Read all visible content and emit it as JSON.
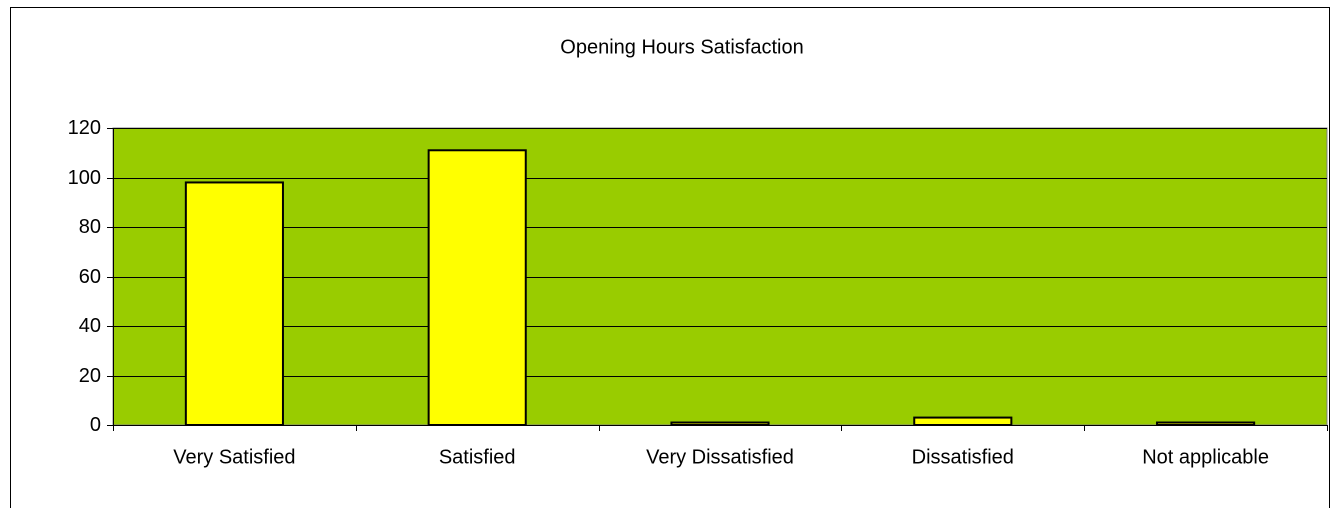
{
  "chart_data": {
    "type": "bar",
    "title": "Opening Hours Satisfaction",
    "categories": [
      "Very Satisfied",
      "Satisfied",
      "Very Dissatisfied",
      "Dissatisfied",
      "Not applicable"
    ],
    "values": [
      98,
      111,
      1,
      3,
      1
    ],
    "color": "#ffff00",
    "plot_background": "#99cc00",
    "ylim": [
      0,
      120
    ],
    "yticks": [
      0,
      20,
      40,
      60,
      80,
      100,
      120
    ],
    "grid": true
  }
}
